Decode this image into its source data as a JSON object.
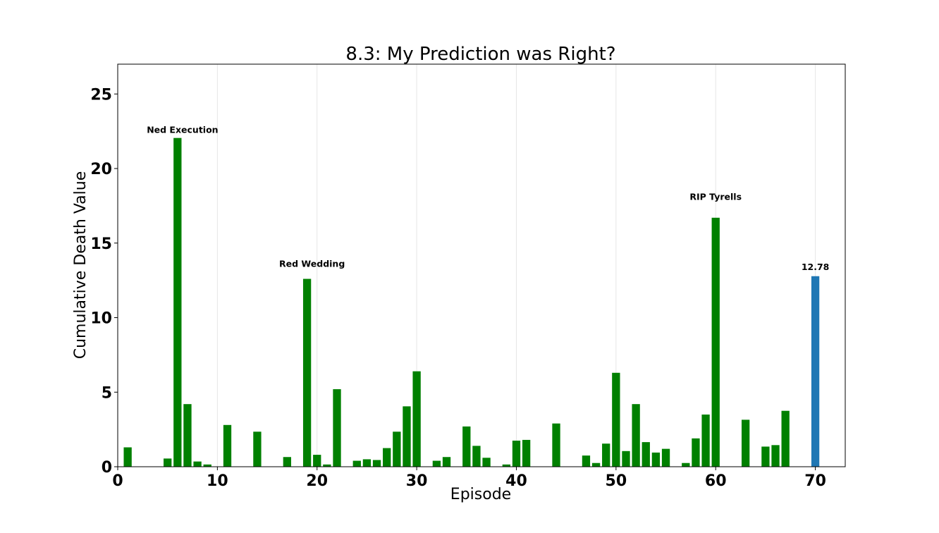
{
  "chart_data": {
    "type": "bar",
    "title": "8.3: My Prediction was Right?",
    "xlabel": "Episode",
    "ylabel": "Cumulative Death Value",
    "xlim": [
      0,
      73
    ],
    "ylim": [
      0,
      27
    ],
    "xticks": [
      0,
      10,
      20,
      30,
      40,
      50,
      60,
      70
    ],
    "yticks": [
      0,
      5,
      10,
      15,
      20,
      25
    ],
    "grid": "vertical",
    "colors": {
      "history": "#008000",
      "prediction": "#1f77b4"
    },
    "series": [
      {
        "color": "#008000",
        "x": [
          1,
          5,
          6,
          7,
          8,
          9,
          11,
          14,
          17,
          19,
          20,
          21,
          22,
          24,
          25,
          26,
          27,
          28,
          29,
          30,
          32,
          33,
          35,
          36,
          37,
          39,
          40,
          41,
          44,
          47,
          48,
          49,
          50,
          51,
          52,
          53,
          54,
          55,
          57,
          58,
          59,
          60,
          63,
          65,
          66,
          67
        ],
        "values": [
          1.3,
          0.55,
          22.05,
          4.2,
          0.35,
          0.15,
          2.8,
          2.35,
          0.65,
          12.6,
          0.8,
          0.15,
          5.2,
          0.4,
          0.5,
          0.45,
          1.25,
          2.35,
          4.05,
          6.4,
          0.4,
          0.65,
          2.7,
          1.4,
          0.6,
          0.15,
          1.75,
          1.8,
          2.9,
          0.75,
          0.25,
          1.55,
          6.3,
          1.05,
          4.2,
          1.65,
          0.95,
          1.2,
          0.25,
          1.9,
          3.5,
          16.7,
          3.15,
          1.35,
          1.45,
          3.75
        ]
      },
      {
        "color": "#1f77b4",
        "x": [
          70
        ],
        "values": [
          12.78
        ]
      }
    ],
    "annotations": [
      {
        "text": "Ned Execution",
        "x": 6.5,
        "y": 22.4
      },
      {
        "text": "Red Wedding",
        "x": 19.5,
        "y": 13.4
      },
      {
        "text": "RIP Tyrells",
        "x": 60.0,
        "y": 17.9
      },
      {
        "text": "12.78",
        "x": 70.0,
        "y": 13.2
      }
    ]
  }
}
